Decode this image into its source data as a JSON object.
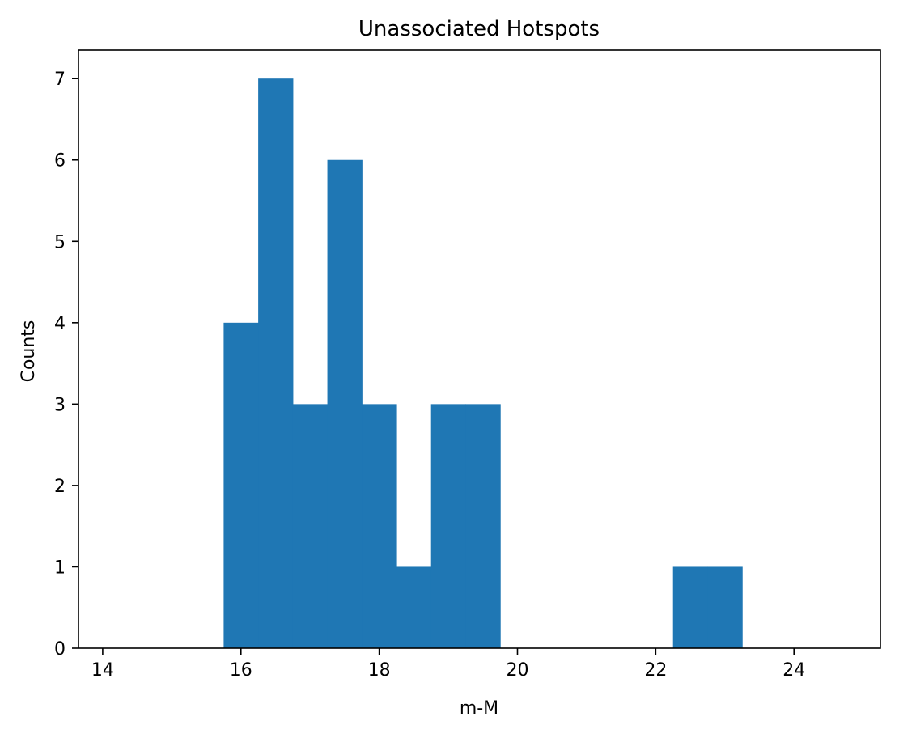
{
  "chart_data": {
    "type": "bar",
    "title": "Unassociated Hotspots",
    "xlabel": "m-M",
    "ylabel": "Counts",
    "xlim": [
      13.65,
      25.25
    ],
    "ylim": [
      0,
      7.35
    ],
    "xticks": [
      14,
      16,
      18,
      20,
      22,
      24
    ],
    "yticks": [
      0,
      1,
      2,
      3,
      4,
      5,
      6,
      7
    ],
    "bin_edges": [
      15.75,
      16.25,
      16.75,
      17.25,
      17.75,
      18.25,
      18.75,
      19.25,
      19.75,
      20.25,
      20.75,
      21.25,
      21.75,
      22.25,
      22.75,
      23.25
    ],
    "values": [
      4,
      7,
      3,
      6,
      3,
      1,
      3,
      3,
      0,
      0,
      0,
      0,
      0,
      1,
      1
    ],
    "bar_color": "#1f77b4",
    "grid": false,
    "legend": "none"
  }
}
